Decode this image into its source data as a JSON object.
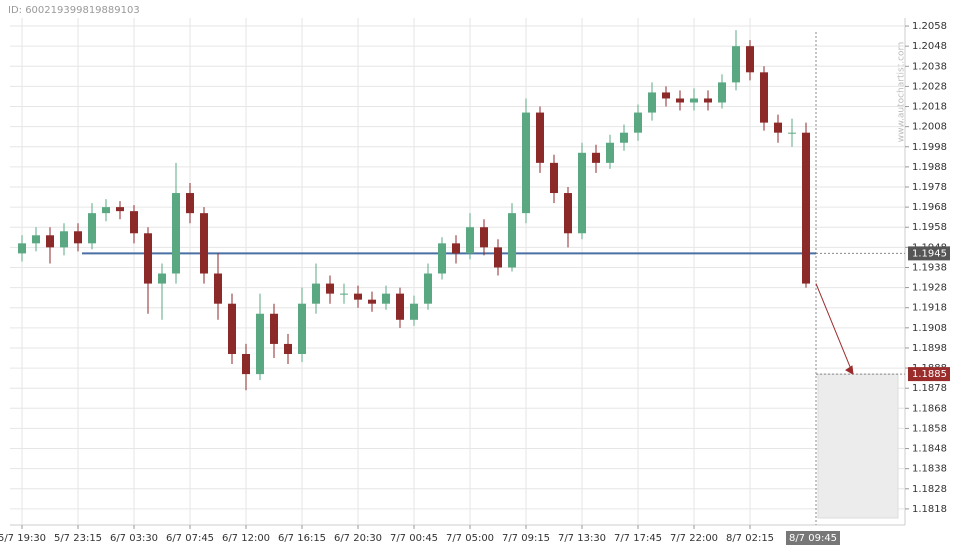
{
  "chart_data": {
    "type": "candlestick",
    "id_label": "ID: 600219399819889103",
    "watermark": "www.autochartist.com",
    "categories": [
      "5/7 19:30",
      null,
      null,
      null,
      "5/7 23:15",
      null,
      null,
      null,
      "6/7 03:30",
      null,
      null,
      null,
      "6/7 07:45",
      null,
      null,
      null,
      "6/7 12:00",
      null,
      null,
      null,
      "6/7 16:15",
      null,
      null,
      null,
      "6/7 20:30",
      null,
      null,
      null,
      "7/7 00:45",
      null,
      null,
      null,
      "7/7 05:00",
      null,
      null,
      null,
      "7/7 09:15",
      null,
      null,
      null,
      "7/7 13:30",
      null,
      null,
      null,
      "7/7 17:45",
      null,
      null,
      null,
      "7/7 22:00",
      null,
      null,
      null,
      "8/7 02:15",
      null,
      null,
      null,
      "8/7 09:45"
    ],
    "open": [
      1.1945,
      1.195,
      1.1954,
      1.1948,
      1.1956,
      1.195,
      1.1965,
      1.1968,
      1.1966,
      1.1955,
      1.193,
      1.1935,
      1.1975,
      1.1965,
      1.1935,
      1.192,
      1.1895,
      1.1885,
      1.1915,
      1.19,
      1.1895,
      1.192,
      1.193,
      1.1925,
      1.1925,
      1.1922,
      1.192,
      1.1925,
      1.1912,
      1.192,
      1.1935,
      1.195,
      1.1945,
      1.1958,
      1.1948,
      1.1938,
      1.1965,
      1.2015,
      1.199,
      1.1975,
      1.1955,
      1.1995,
      1.199,
      1.2,
      1.2005,
      1.2015,
      1.2025,
      1.2022,
      1.202,
      1.2022,
      1.202,
      1.203,
      1.2048,
      1.2035,
      1.201,
      1.2005,
      1.2005
    ],
    "high": [
      1.1954,
      1.1958,
      1.1958,
      1.196,
      1.196,
      1.197,
      1.1972,
      1.1971,
      1.1969,
      1.1958,
      1.194,
      1.199,
      1.198,
      1.1968,
      1.1945,
      1.1925,
      1.19,
      1.1925,
      1.192,
      1.1905,
      1.1928,
      1.194,
      1.1934,
      1.193,
      1.1929,
      1.1926,
      1.1929,
      1.1928,
      1.1924,
      1.194,
      1.1953,
      1.1954,
      1.1965,
      1.1962,
      1.1952,
      1.197,
      1.2022,
      1.2018,
      1.1994,
      1.1978,
      1.2,
      1.1999,
      1.2004,
      1.2009,
      1.2019,
      1.203,
      1.2028,
      1.2026,
      1.2027,
      1.2026,
      1.2034,
      1.2056,
      1.2051,
      1.2038,
      1.2014,
      1.2012,
      1.201
    ],
    "low": [
      1.1941,
      1.1946,
      1.194,
      1.1944,
      1.1946,
      1.1947,
      1.1961,
      1.1962,
      1.195,
      1.1915,
      1.1912,
      1.193,
      1.196,
      1.193,
      1.1912,
      1.189,
      1.1877,
      1.1882,
      1.1893,
      1.189,
      1.1891,
      1.1915,
      1.192,
      1.192,
      1.1918,
      1.1916,
      1.1917,
      1.1908,
      1.1909,
      1.1917,
      1.1932,
      1.194,
      1.1942,
      1.1944,
      1.1934,
      1.1936,
      1.196,
      1.1985,
      1.197,
      1.1948,
      1.1952,
      1.1985,
      1.1987,
      1.1996,
      1.2001,
      1.2011,
      1.2018,
      1.2016,
      1.2016,
      1.2016,
      1.2017,
      1.2026,
      1.2031,
      1.2006,
      1.2,
      1.1998,
      1.1928
    ],
    "close": [
      1.195,
      1.1954,
      1.1948,
      1.1956,
      1.195,
      1.1965,
      1.1968,
      1.1966,
      1.1955,
      1.193,
      1.1935,
      1.1975,
      1.1965,
      1.1935,
      1.192,
      1.1895,
      1.1885,
      1.1915,
      1.19,
      1.1895,
      1.192,
      1.193,
      1.1925,
      1.1925,
      1.1922,
      1.192,
      1.1925,
      1.1912,
      1.192,
      1.1935,
      1.195,
      1.1945,
      1.1958,
      1.1948,
      1.1938,
      1.1965,
      1.2015,
      1.199,
      1.1975,
      1.1955,
      1.1995,
      1.199,
      1.2,
      1.2005,
      1.2015,
      1.2025,
      1.2022,
      1.202,
      1.2022,
      1.202,
      1.203,
      1.2048,
      1.2035,
      1.201,
      1.2005,
      1.2005,
      1.193
    ],
    "up_color": "#5aa882",
    "down_color": "#8c2a2a",
    "level": 1.1945,
    "level_color": "#4a6fa5",
    "target": 1.1885,
    "target_color": "#9b2c2c",
    "ylim": [
      1.181,
      1.2062
    ],
    "yticks": [
      1.1818,
      1.1828,
      1.1838,
      1.1848,
      1.1858,
      1.1868,
      1.1878,
      1.1888,
      1.1898,
      1.1908,
      1.1918,
      1.1928,
      1.1938,
      1.1948,
      1.1958,
      1.1968,
      1.1978,
      1.1988,
      1.1998,
      1.2008,
      1.2018,
      1.2028,
      1.2038,
      1.2048,
      1.2058
    ],
    "grid": true
  }
}
